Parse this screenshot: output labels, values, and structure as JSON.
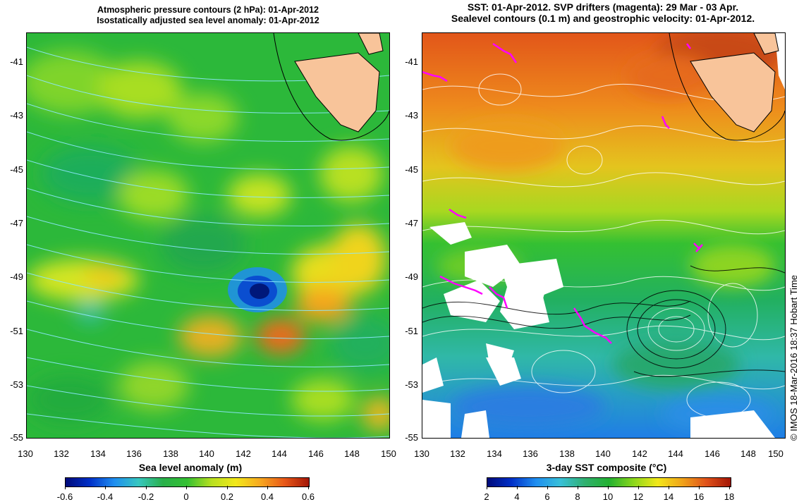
{
  "left_panel": {
    "title_line1": "Atmospheric pressure contours (2 hPa): 01-Apr-2012",
    "title_line2": "Isostatically adjusted sea level anomaly: 01-Apr-2012",
    "xlabel": "Sea level anomaly (m)",
    "colorbar_ticks": [
      "-0.6",
      "-0.4",
      "-0.2",
      "0",
      "0.2",
      "0.4",
      "0.6"
    ]
  },
  "right_panel": {
    "title_line1": "SST: 01-Apr-2012. SVP drifters (magenta): 29 Mar - 03 Apr.",
    "title_line2": "Sealevel contours (0.1 m) and geostrophic velocity: 01-Apr-2012.",
    "xlabel": "3-day SST composite (°C)",
    "colorbar_ticks": [
      "2",
      "4",
      "6",
      "8",
      "10",
      "12",
      "14",
      "16",
      "18"
    ]
  },
  "y_ticks": [
    "-41",
    "-43",
    "-45",
    "-47",
    "-49",
    "-51",
    "-53",
    "-55"
  ],
  "x_ticks": [
    "130",
    "132",
    "134",
    "136",
    "138",
    "140",
    "142",
    "144",
    "146",
    "148",
    "150"
  ],
  "credit": "© IMOS 18-Mar-2016 18:37 Hobart Time",
  "colors": {
    "land": "#f8c49a",
    "drifter": "#ff00ff",
    "pressure_contour": "#8ee8ff",
    "sealevel_contour": "#ffffff"
  }
}
